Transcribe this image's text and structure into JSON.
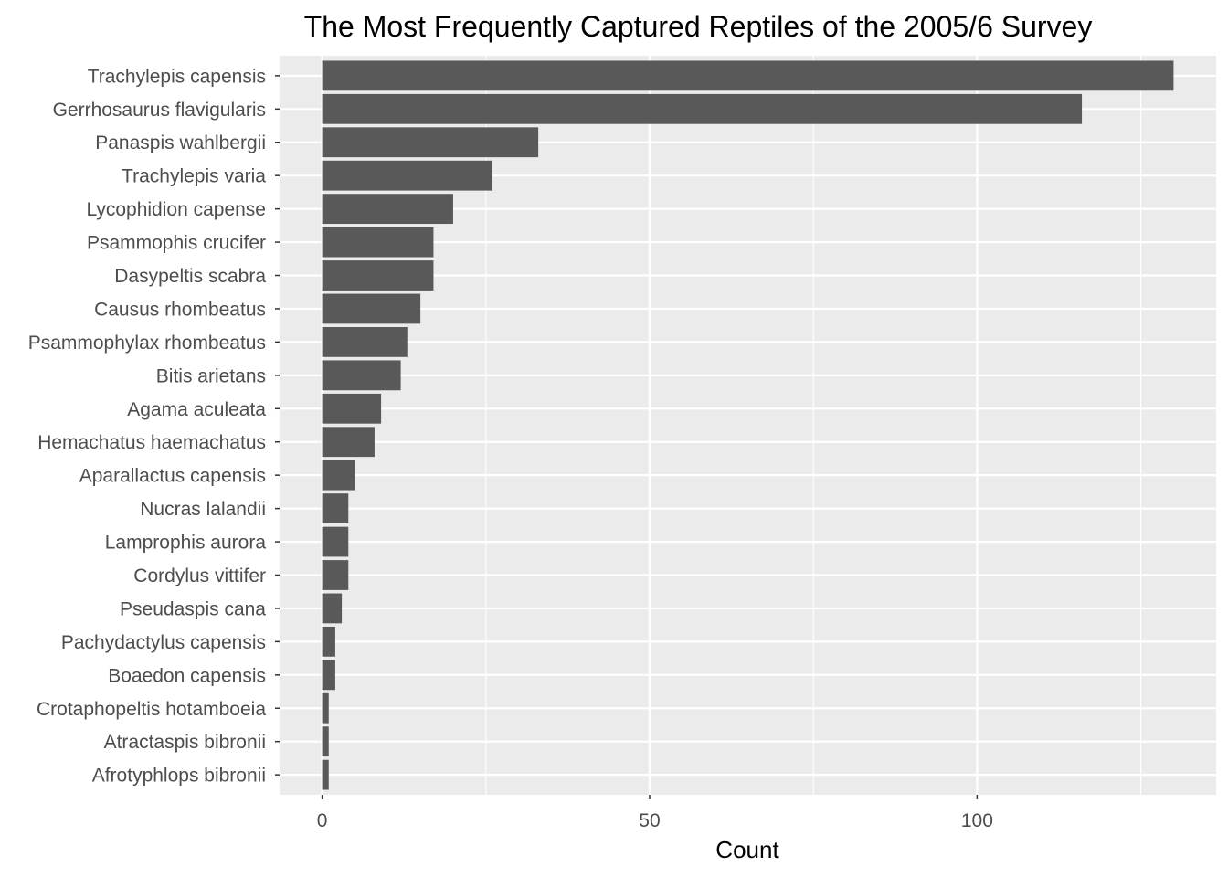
{
  "chart_data": {
    "type": "bar",
    "orientation": "horizontal",
    "title": "The Most Frequently Captured Reptiles of the 2005/6 Survey",
    "xlabel": "Count",
    "ylabel": "",
    "categories": [
      "Trachylepis capensis",
      "Gerrhosaurus flavigularis",
      "Panaspis wahlbergii",
      "Trachylepis varia",
      "Lycophidion capense",
      "Psammophis crucifer",
      "Dasypeltis scabra",
      "Causus rhombeatus",
      "Psammophylax rhombeatus",
      "Bitis arietans",
      "Agama aculeata",
      "Hemachatus haemachatus",
      "Aparallactus capensis",
      "Nucras lalandii",
      "Lamprophis aurora",
      "Cordylus vittifer",
      "Pseudaspis cana",
      "Pachydactylus capensis",
      "Boaedon capensis",
      "Crotaphopeltis hotamboeia",
      "Atractaspis bibronii",
      "Afrotyphlops bibronii"
    ],
    "values": [
      130,
      116,
      33,
      26,
      20,
      17,
      17,
      15,
      13,
      12,
      9,
      8,
      5,
      4,
      4,
      4,
      3,
      2,
      2,
      1,
      1,
      1
    ],
    "xlim": [
      -6.5,
      136.5
    ],
    "xticks": [
      0,
      50,
      100
    ],
    "xtick_labels": [
      "0",
      "50",
      "100"
    ],
    "colors": {
      "bar": "#595959",
      "panel": "#ebebeb",
      "grid": "#ffffff",
      "tick_text": "#4d4d4d",
      "tick_mark": "#333333"
    }
  }
}
